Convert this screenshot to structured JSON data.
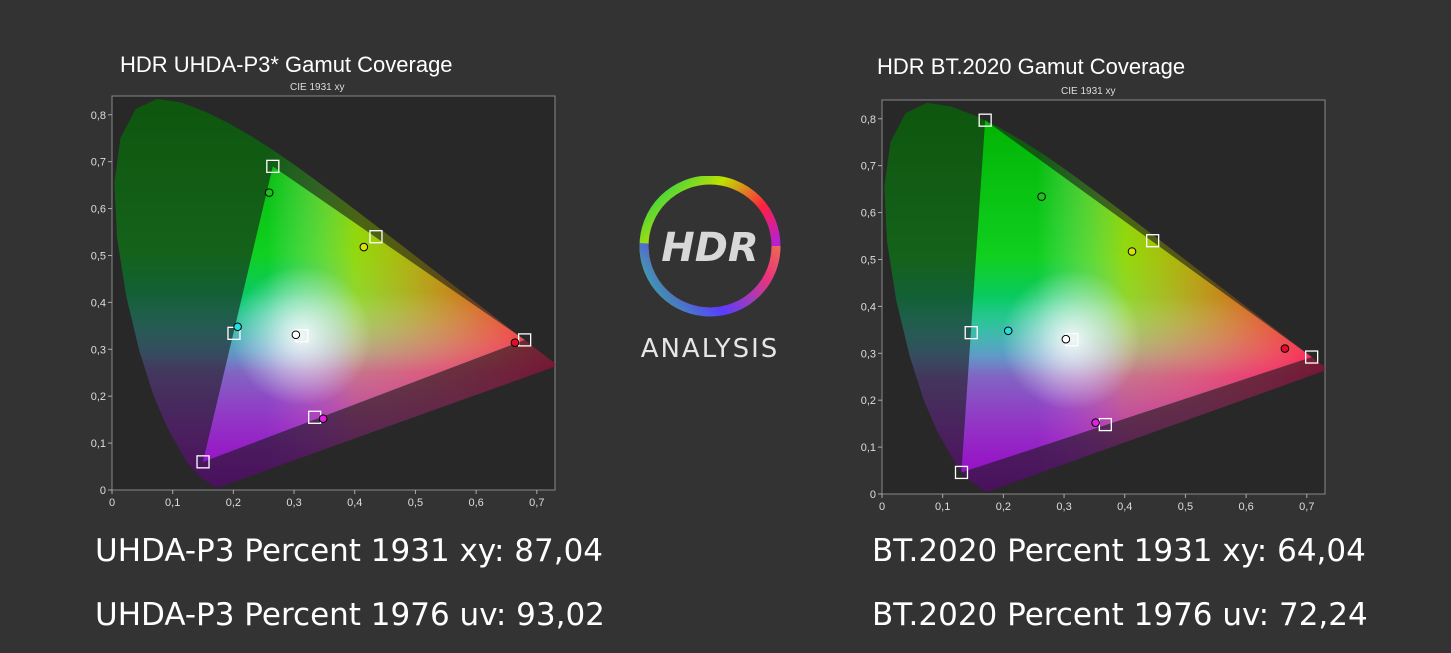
{
  "logo": {
    "top_text": "HDR",
    "bottom_text": "ANALYSIS"
  },
  "stats": {
    "left_xy": "UHDA-P3 Percent 1931 xy: 87,04",
    "left_uv": "UHDA-P3 Percent 1976 uv: 93,02",
    "right_xy": "BT.2020 Percent 1931 xy: 64,04",
    "right_uv": "BT.2020 Percent 1976 uv: 72,24"
  },
  "chart_data": [
    {
      "type": "scatter",
      "title": "HDR UHDA-P3* Gamut Coverage",
      "subtitle": "CIE 1931 xy",
      "xlim": [
        0,
        0.73
      ],
      "ylim": [
        0,
        0.84
      ],
      "x_ticks": [
        "0",
        "0,1",
        "0,2",
        "0,3",
        "0,4",
        "0,5",
        "0,6",
        "0,7"
      ],
      "y_ticks": [
        "0",
        "0,1",
        "0,2",
        "0,3",
        "0,4",
        "0,5",
        "0,6",
        "0,7",
        "0,8"
      ],
      "target_gamut": [
        [
          0.68,
          0.32
        ],
        [
          0.265,
          0.69
        ],
        [
          0.15,
          0.06
        ]
      ],
      "targets": [
        {
          "x": 0.68,
          "y": 0.32
        },
        {
          "x": 0.265,
          "y": 0.69
        },
        {
          "x": 0.15,
          "y": 0.06
        },
        {
          "x": 0.435,
          "y": 0.54
        },
        {
          "x": 0.201,
          "y": 0.334
        },
        {
          "x": 0.334,
          "y": 0.155
        },
        {
          "x": 0.3127,
          "y": 0.329
        }
      ],
      "measured": [
        {
          "x": 0.664,
          "y": 0.314,
          "color": "#e0102a"
        },
        {
          "x": 0.259,
          "y": 0.634,
          "color": "#20c020"
        },
        {
          "x": 0.415,
          "y": 0.518,
          "color": "#d8e010"
        },
        {
          "x": 0.207,
          "y": 0.348,
          "color": "#20e0e0"
        },
        {
          "x": 0.348,
          "y": 0.152,
          "color": "#e020e0"
        },
        {
          "x": 0.303,
          "y": 0.331,
          "color": "#ffffff"
        }
      ]
    },
    {
      "type": "scatter",
      "title": "HDR BT.2020  Gamut Coverage",
      "subtitle": "CIE 1931 xy",
      "xlim": [
        0,
        0.73
      ],
      "ylim": [
        0,
        0.84
      ],
      "x_ticks": [
        "0",
        "0,1",
        "0,2",
        "0,3",
        "0,4",
        "0,5",
        "0,6",
        "0,7"
      ],
      "y_ticks": [
        "0",
        "0,1",
        "0,2",
        "0,3",
        "0,4",
        "0,5",
        "0,6",
        "0,7",
        "0,8"
      ],
      "target_gamut": [
        [
          0.708,
          0.292
        ],
        [
          0.17,
          0.797
        ],
        [
          0.131,
          0.046
        ]
      ],
      "targets": [
        {
          "x": 0.708,
          "y": 0.292
        },
        {
          "x": 0.17,
          "y": 0.797
        },
        {
          "x": 0.131,
          "y": 0.046
        },
        {
          "x": 0.446,
          "y": 0.54
        },
        {
          "x": 0.147,
          "y": 0.344
        },
        {
          "x": 0.368,
          "y": 0.148
        },
        {
          "x": 0.3127,
          "y": 0.329
        }
      ],
      "measured": [
        {
          "x": 0.664,
          "y": 0.31,
          "color": "#e0102a"
        },
        {
          "x": 0.263,
          "y": 0.634,
          "color": "#20c020"
        },
        {
          "x": 0.412,
          "y": 0.517,
          "color": "#d8e010"
        },
        {
          "x": 0.208,
          "y": 0.348,
          "color": "#20e0e0"
        },
        {
          "x": 0.352,
          "y": 0.152,
          "color": "#e020e0"
        },
        {
          "x": 0.303,
          "y": 0.33,
          "color": "#ffffff"
        }
      ]
    }
  ]
}
